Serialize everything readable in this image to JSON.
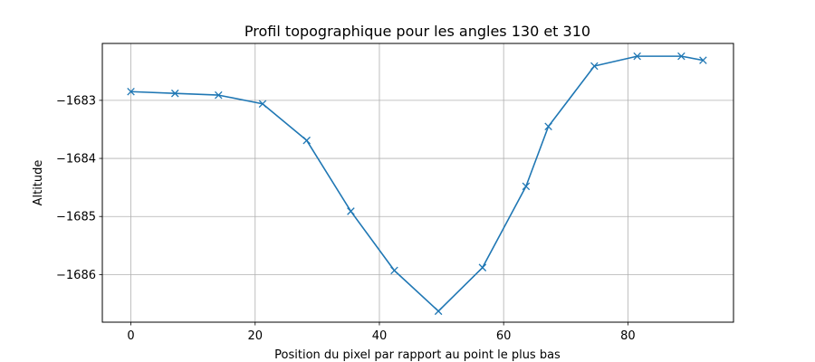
{
  "chart_data": {
    "type": "line",
    "title": "Profil topographique pour les angles 130 et 310",
    "xlabel": "Position du pixel par rapport au point le plus bas",
    "ylabel": "Altitude",
    "xlim": [
      -4.6,
      97.0
    ],
    "ylim": [
      -1686.82,
      -1682.02
    ],
    "grid": true,
    "marker": "x",
    "line_color": "#1f77b4",
    "x_ticks": [
      0,
      20,
      40,
      60,
      80
    ],
    "y_ticks": [
      -1686,
      -1685,
      -1684,
      -1683
    ],
    "x_tick_labels": [
      "0",
      "20",
      "40",
      "60",
      "80"
    ],
    "y_tick_labels": [
      "−1686",
      "−1685",
      "−1684",
      "−1683"
    ],
    "series": [
      {
        "x": [
          0,
          7.1,
          14.1,
          21.2,
          28.3,
          35.4,
          42.4,
          49.5,
          56.6,
          63.6,
          67.2,
          74.6,
          81.5,
          88.6,
          92.1
        ],
        "y": [
          -1682.85,
          -1682.88,
          -1682.91,
          -1683.06,
          -1683.69,
          -1684.91,
          -1685.93,
          -1686.63,
          -1685.88,
          -1684.48,
          -1683.45,
          -1682.41,
          -1682.24,
          -1682.24,
          -1682.31
        ]
      }
    ]
  }
}
